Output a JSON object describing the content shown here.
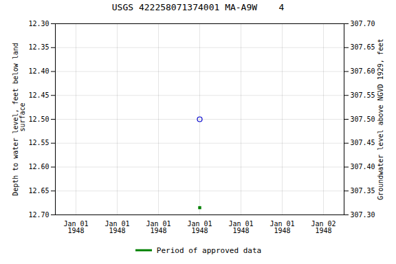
{
  "chart_data": {
    "type": "scatter",
    "title": "USGS 422258071374001 MA-A9W    4",
    "categories": [
      "Jan 01\n1948",
      "Jan 01\n1948",
      "Jan 01\n1948",
      "Jan 01\n1948",
      "Jan 01\n1948",
      "Jan 01\n1948",
      "Jan 02\n1948"
    ],
    "series": [
      {
        "color": "#0000cc",
        "marker": "open_circle",
        "values": [
          null,
          null,
          null,
          12.5,
          null,
          null,
          null
        ]
      },
      {
        "name": "Period of approved data",
        "color": "#008000",
        "marker": "square",
        "values": [
          null,
          null,
          null,
          12.685,
          null,
          null,
          null
        ]
      }
    ],
    "ylim": [
      12.7,
      12.3
    ],
    "yticks": [
      {
        "value": 12.3,
        "label": "12.30"
      },
      12.35,
      {
        "value": 12.4,
        "label": "12.40"
      },
      12.45,
      {
        "value": 12.5,
        "label": "12.50"
      },
      12.55,
      {
        "value": 12.6,
        "label": "12.60"
      },
      12.65,
      {
        "value": 12.7,
        "label": "12.70"
      }
    ],
    "y_label": "Depth to water level, feet below land\n surface",
    "y2lim": [
      307.3,
      307.7
    ],
    "y2ticks": [
      {
        "value": 307.7,
        "label": "307.70"
      },
      307.65,
      {
        "value": 307.6,
        "label": "307.60"
      },
      307.55,
      {
        "value": 307.5,
        "label": "307.50"
      },
      307.45,
      {
        "value": 307.4,
        "label": "307.40"
      },
      307.35,
      {
        "value": 307.3,
        "label": "307.30"
      }
    ],
    "y2_label": "Groundwater level above NGVD 1929, feet",
    "grid": true,
    "legend": "bottom"
  }
}
